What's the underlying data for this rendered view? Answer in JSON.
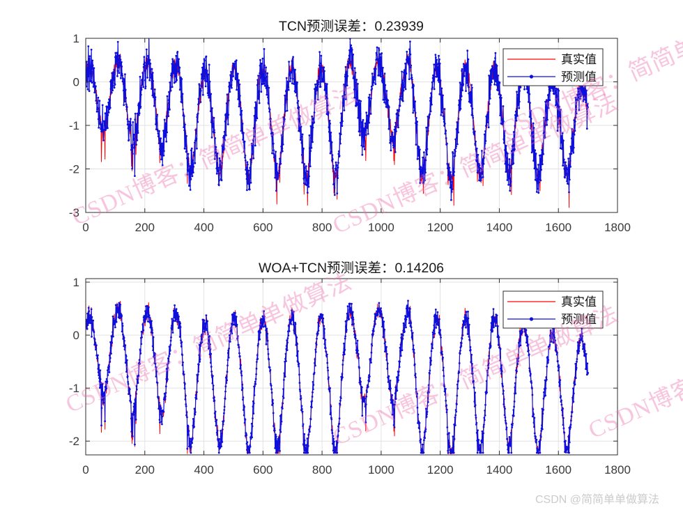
{
  "figure": {
    "background": "#ffffff",
    "credit_text": "CSDN @简简单单做算法",
    "watermark_text": "CSDN博客：简简单单做算法",
    "watermark_color": "rgba(235,110,170,0.40)",
    "grid_color": "#e2e2e2",
    "axis_color": "#2b2b2b",
    "tick_label_color": "#3a3a3a"
  },
  "signal": {
    "n": 1700,
    "period": 98,
    "phase_offset": 12.5,
    "seed": 1234,
    "true_noise_sd": 0.09,
    "spike_prob": 0.1,
    "peaks": [
      0.3,
      0.48,
      0.45,
      0.42,
      0.22,
      0.3,
      0.28,
      0.3,
      0.3,
      0.45,
      0.5,
      0.45,
      0.28,
      0.3,
      0.28,
      0.2,
      0.0,
      -0.1
    ],
    "troughs": [
      -1.15,
      -1.45,
      -1.55,
      -2.1,
      -2.15,
      -2.2,
      -2.1,
      -2.2,
      -2.2,
      -1.3,
      -1.35,
      -2.2,
      -2.25,
      -2.2,
      -2.1,
      -2.2,
      -2.15,
      -2.25
    ]
  },
  "chart_data": [
    {
      "type": "line",
      "title": "TCN预测误差：0.23939",
      "error_value": 0.23939,
      "xlim": [
        0,
        1800
      ],
      "ylim": [
        -3,
        1
      ],
      "x_ticks": [
        0,
        200,
        400,
        600,
        800,
        1000,
        1200,
        1400,
        1600,
        1800
      ],
      "y_ticks": [
        1,
        0,
        -1,
        -2,
        -3
      ],
      "grid": true,
      "legend_position": "top-right",
      "series": [
        {
          "name": "真实值",
          "color": "#ff0000",
          "marker": "none"
        },
        {
          "name": "预测值",
          "color": "#0f0fdc",
          "marker": "dot"
        }
      ],
      "pred_track": 0.45,
      "pred_noise_sd": 0.22,
      "pred_seed": 20
    },
    {
      "type": "line",
      "title": "WOA+TCN预测误差：0.14206",
      "error_value": 0.14206,
      "xlim": [
        0,
        1800
      ],
      "ylim": [
        -2.26,
        1.066
      ],
      "x_ticks": [
        0,
        200,
        400,
        600,
        800,
        1000,
        1200,
        1400,
        1600,
        1800
      ],
      "y_ticks": [
        1,
        0,
        -1,
        -2
      ],
      "grid": true,
      "legend_position": "top-right",
      "series": [
        {
          "name": "真实值",
          "color": "#ff0000",
          "marker": "none"
        },
        {
          "name": "预测值",
          "color": "#0f0fdc",
          "marker": "dot"
        }
      ],
      "pred_track": 0.85,
      "pred_noise_sd": 0.055,
      "pred_seed": 21
    }
  ]
}
